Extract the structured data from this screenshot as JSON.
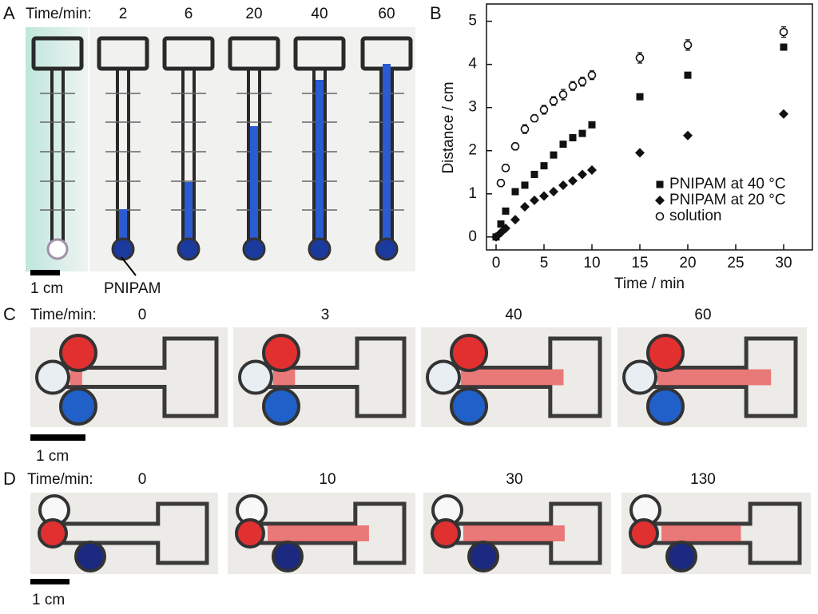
{
  "panels": {
    "a": {
      "label": "A",
      "time_label": "Time/min:",
      "times": [
        2,
        6,
        20,
        40,
        60
      ],
      "scale_label": "1 cm",
      "annotation": "PNIPAM"
    },
    "c": {
      "label": "C",
      "time_label": "Time/min:",
      "times": [
        0,
        3,
        40,
        60
      ],
      "scale_label": "1 cm"
    },
    "d": {
      "label": "D",
      "time_label": "Time/min:",
      "times": [
        0,
        10,
        30,
        130
      ],
      "scale_label": "1 cm"
    }
  },
  "chart_data": {
    "type": "scatter",
    "label": "B",
    "x_label": "Time / min",
    "y_label": "Distance / cm",
    "xlim": [
      -1,
      33
    ],
    "ylim": [
      -0.3,
      5.4
    ],
    "xticks": [
      0,
      5,
      10,
      15,
      20,
      25,
      30
    ],
    "yticks": [
      0,
      1,
      2,
      3,
      4,
      5
    ],
    "legend_position": "lower right",
    "series": [
      {
        "name": "PNIPAM at 40 °C",
        "marker": "square",
        "color": "#111111",
        "x": [
          0,
          0.5,
          1,
          2,
          3,
          4,
          5,
          6,
          7,
          8,
          9,
          10,
          15,
          20,
          30
        ],
        "values": [
          0,
          0.3,
          0.6,
          1.05,
          1.2,
          1.45,
          1.65,
          1.9,
          2.15,
          2.3,
          2.4,
          2.6,
          3.25,
          3.75,
          4.4
        ]
      },
      {
        "name": "PNIPAM at 20 °C",
        "marker": "diamond",
        "color": "#111111",
        "x": [
          0,
          0.5,
          1,
          2,
          3,
          4,
          5,
          6,
          7,
          8,
          9,
          10,
          15,
          20,
          30
        ],
        "values": [
          0,
          0.1,
          0.2,
          0.4,
          0.7,
          0.85,
          0.95,
          1.05,
          1.2,
          1.3,
          1.45,
          1.55,
          1.95,
          2.35,
          2.85
        ]
      },
      {
        "name": "solution",
        "marker": "circle",
        "color": "#111111",
        "x": [
          0.5,
          1,
          2,
          3,
          4,
          5,
          6,
          7,
          8,
          9,
          10,
          15,
          20,
          30
        ],
        "values": [
          1.25,
          1.6,
          2.1,
          2.5,
          2.75,
          2.95,
          3.15,
          3.3,
          3.5,
          3.6,
          3.75,
          4.15,
          4.45,
          4.75
        ],
        "errors": [
          0.08,
          0.08,
          0.08,
          0.1,
          0.08,
          0.1,
          0.1,
          0.12,
          0.1,
          0.1,
          0.1,
          0.12,
          0.12,
          0.12
        ]
      }
    ]
  }
}
